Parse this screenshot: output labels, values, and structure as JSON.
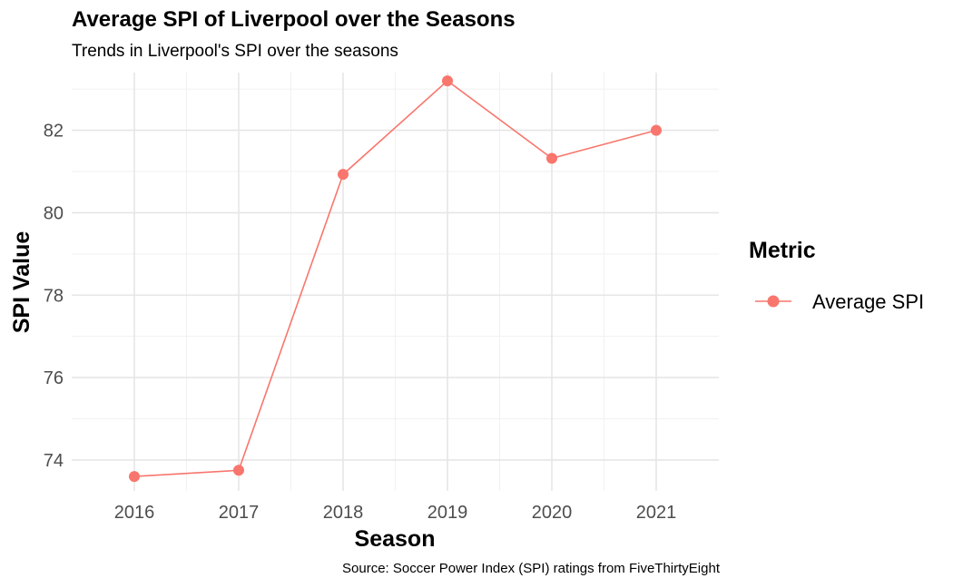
{
  "chart_data": {
    "type": "line",
    "title": "Average SPI of Liverpool over the Seasons",
    "subtitle": "Trends in Liverpool's SPI over the seasons",
    "caption": "Source: Soccer Power Index (SPI) ratings from FiveThirtyEight",
    "xlabel": "Season",
    "ylabel": "SPI Value",
    "categories": [
      "2016",
      "2017",
      "2018",
      "2019",
      "2020",
      "2021"
    ],
    "series": [
      {
        "name": "Average SPI",
        "values": [
          73.6,
          73.75,
          80.93,
          83.2,
          81.32,
          82.0
        ],
        "color": "#F8766D"
      }
    ],
    "y_ticks": [
      74,
      76,
      78,
      80,
      82
    ],
    "ylim": [
      73.25,
      83.4
    ],
    "grid": true,
    "legend": {
      "title": "Metric",
      "position": "right"
    }
  }
}
